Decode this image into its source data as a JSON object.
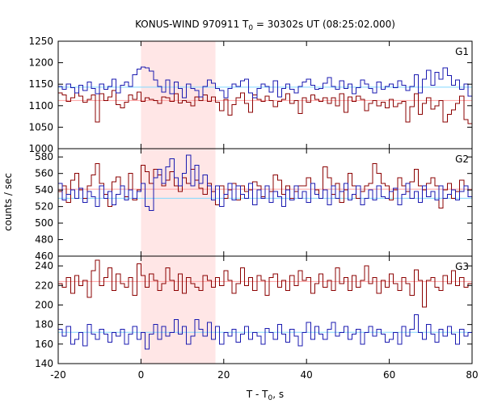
{
  "chart_data": {
    "type": "line",
    "title": {
      "prefix": "KONUS-WIND 970911 T",
      "sub": "0",
      "suffix": " = 30302s UT (08:25:02.000)"
    },
    "xlabel": {
      "prefix": "T - T",
      "sub": "0",
      "suffix": ", s"
    },
    "ylabel": "counts / sec",
    "xlim": [
      -20,
      80
    ],
    "xticks": [
      "-20",
      "0",
      "20",
      "40",
      "60",
      "80"
    ],
    "highlight_interval": [
      0,
      18
    ],
    "colors": {
      "red_series": "#8b0000",
      "blue_series": "#1a1ab0",
      "red_mean": "#ffa0a0",
      "blue_mean": "#80d8ff",
      "highlight": "#ffe6e6"
    },
    "panels": [
      {
        "label": "G1",
        "ylim": [
          1000,
          1250
        ],
        "yticks": [
          "1000",
          "1050",
          "1100",
          "1150",
          "1200",
          "1250"
        ],
        "mean_red": 1112,
        "mean_blue": 1143,
        "series": [
          {
            "color_key": "red_series",
            "x0": -20,
            "dx": 1,
            "values": [
              1130,
              1125,
              1110,
              1118,
              1130,
              1122,
              1108,
              1115,
              1125,
              1062,
              1128,
              1112,
              1120,
              1135,
              1102,
              1095,
              1108,
              1125,
              1115,
              1132,
              1110,
              1118,
              1115,
              1112,
              1105,
              1120,
              1118,
              1110,
              1128,
              1106,
              1112,
              1108,
              1100,
              1120,
              1112,
              1125,
              1110,
              1120,
              1108,
              1088,
              1115,
              1078,
              1102,
              1118,
              1130,
              1105,
              1085,
              1125,
              1115,
              1110,
              1122,
              1112,
              1098,
              1110,
              1115,
              1128,
              1105,
              1112,
              1082,
              1118,
              1108,
              1125,
              1115,
              1110,
              1118,
              1105,
              1118,
              1100,
              1128,
              1085,
              1120,
              1110,
              1122,
              1115,
              1088,
              1105,
              1112,
              1100,
              1108,
              1095,
              1115,
              1098,
              1105,
              1110,
              1062,
              1098,
              1128,
              1080,
              1105,
              1118,
              1092,
              1100,
              1112,
              1062,
              1080,
              1090,
              1105,
              1122,
              1068,
              1058
            ]
          },
          {
            "color_key": "blue_series",
            "x0": -20,
            "dx": 1,
            "values": [
              1145,
              1138,
              1150,
              1142,
              1130,
              1148,
              1135,
              1155,
              1140,
              1128,
              1150,
              1138,
              1145,
              1162,
              1130,
              1148,
              1155,
              1145,
              1172,
              1185,
              1190,
              1188,
              1180,
              1160,
              1145,
              1132,
              1160,
              1128,
              1155,
              1140,
              1118,
              1150,
              1140,
              1135,
              1120,
              1145,
              1160,
              1152,
              1140,
              1135,
              1118,
              1140,
              1150,
              1145,
              1158,
              1162,
              1130,
              1118,
              1140,
              1150,
              1145,
              1132,
              1158,
              1120,
              1140,
              1150,
              1138,
              1130,
              1145,
              1155,
              1162,
              1148,
              1138,
              1140,
              1152,
              1165,
              1145,
              1138,
              1158,
              1140,
              1150,
              1128,
              1142,
              1160,
              1150,
              1140,
              1130,
              1155,
              1138,
              1145,
              1150,
              1142,
              1158,
              1148,
              1135,
              1145,
              1172,
              1130,
              1162,
              1182,
              1148,
              1178,
              1162,
              1188,
              1170,
              1148,
              1160,
              1138,
              1150,
              1122
            ]
          }
        ]
      },
      {
        "label": "G2",
        "ylim": [
          460,
          590
        ],
        "yticks": [
          "460",
          "480",
          "500",
          "520",
          "540",
          "560",
          "580"
        ],
        "mean_red": 541,
        "mean_blue": 530,
        "series": [
          {
            "color_key": "red_series",
            "x0": -20,
            "dx": 1,
            "values": [
              538,
              545,
              525,
              552,
              560,
              540,
              530,
              545,
              558,
              572,
              548,
              535,
              520,
              550,
              556,
              545,
              532,
              560,
              528,
              540,
              570,
              562,
              548,
              565,
              558,
              545,
              552,
              562,
              545,
              538,
              555,
              548,
              565,
              552,
              542,
              535,
              548,
              538,
              522,
              545,
              530,
              540,
              548,
              528,
              545,
              538,
              540,
              550,
              545,
              532,
              545,
              538,
              558,
              552,
              535,
              545,
              530,
              538,
              545,
              545,
              555,
              548,
              540,
              530,
              568,
              555,
              535,
              548,
              525,
              540,
              560,
              545,
              530,
              538,
              545,
              548,
              572,
              560,
              548,
              545,
              528,
              540,
              555,
              545,
              538,
              550,
              565,
              545,
              540,
              548,
              555,
              545,
              518,
              540,
              548,
              530,
              538,
              552,
              545,
              540
            ]
          },
          {
            "color_key": "blue_series",
            "x0": -20,
            "dx": 1,
            "values": [
              548,
              528,
              535,
              540,
              530,
              542,
              525,
              538,
              532,
              520,
              545,
              530,
              538,
              522,
              535,
              545,
              528,
              540,
              530,
              538,
              548,
              520,
              515,
              555,
              565,
              548,
              568,
              578,
              555,
              545,
              560,
              582,
              545,
              570,
              548,
              558,
              545,
              528,
              545,
              520,
              535,
              548,
              528,
              545,
              535,
              530,
              548,
              522,
              540,
              530,
              545,
              525,
              538,
              532,
              520,
              540,
              528,
              545,
              530,
              538,
              525,
              548,
              535,
              530,
              540,
              522,
              545,
              530,
              538,
              548,
              528,
              535,
              545,
              522,
              530,
              540,
              528,
              545,
              532,
              530,
              538,
              542,
              522,
              535,
              548,
              530,
              538,
              525,
              545,
              532,
              538,
              528,
              545,
              530,
              535,
              540,
              528,
              538,
              545,
              532
            ]
          }
        ]
      },
      {
        "label": "G3",
        "ylim": [
          140,
          250
        ],
        "yticks": [
          "140",
          "160",
          "180",
          "200",
          "220",
          "240"
        ],
        "mean_red": 224,
        "mean_blue": 172,
        "series": [
          {
            "color_key": "red_series",
            "x0": -20,
            "dx": 1,
            "values": [
              222,
              218,
              228,
              212,
              230,
              220,
              225,
              208,
              235,
              246,
              220,
              228,
              238,
              215,
              232,
              222,
              218,
              228,
              210,
              242,
              230,
              218,
              232,
              225,
              215,
              222,
              238,
              225,
              215,
              232,
              212,
              228,
              222,
              218,
              215,
              230,
              225,
              218,
              228,
              220,
              235,
              225,
              212,
              222,
              238,
              220,
              228,
              215,
              230,
              225,
              210,
              228,
              232,
              218,
              225,
              215,
              230,
              220,
              235,
              225,
              228,
              212,
              222,
              232,
              218,
              225,
              215,
              238,
              222,
              228,
              215,
              230,
              218,
              225,
              240,
              222,
              228,
              212,
              225,
              218,
              232,
              222,
              215,
              228,
              222,
              210,
              236,
              225,
              198,
              225,
              228,
              218,
              215,
              230,
              222,
              235,
              220,
              228,
              218,
              222
            ]
          },
          {
            "color_key": "blue_series",
            "x0": -20,
            "dx": 1,
            "values": [
              175,
              168,
              178,
              160,
              165,
              172,
              158,
              180,
              170,
              165,
              175,
              170,
              162,
              172,
              168,
              175,
              160,
              170,
              178,
              165,
              172,
              155,
              170,
              180,
              165,
              178,
              168,
              172,
              185,
              170,
              178,
              160,
              168,
              185,
              175,
              168,
              182,
              165,
              178,
              160,
              172,
              168,
              175,
              162,
              170,
              178,
              165,
              172,
              168,
              160,
              176,
              172,
              165,
              180,
              170,
              162,
              175,
              168,
              158,
              172,
              182,
              165,
              178,
              170,
              165,
              175,
              182,
              168,
              172,
              178,
              165,
              170,
              175,
              160,
              172,
              178,
              168,
              175,
              170,
              162,
              165,
              172,
              160,
              178,
              168,
              175,
              190,
              172,
              165,
              180,
              170,
              162,
              175,
              168,
              178,
              170,
              160,
              175,
              168,
              172
            ]
          }
        ]
      }
    ]
  }
}
